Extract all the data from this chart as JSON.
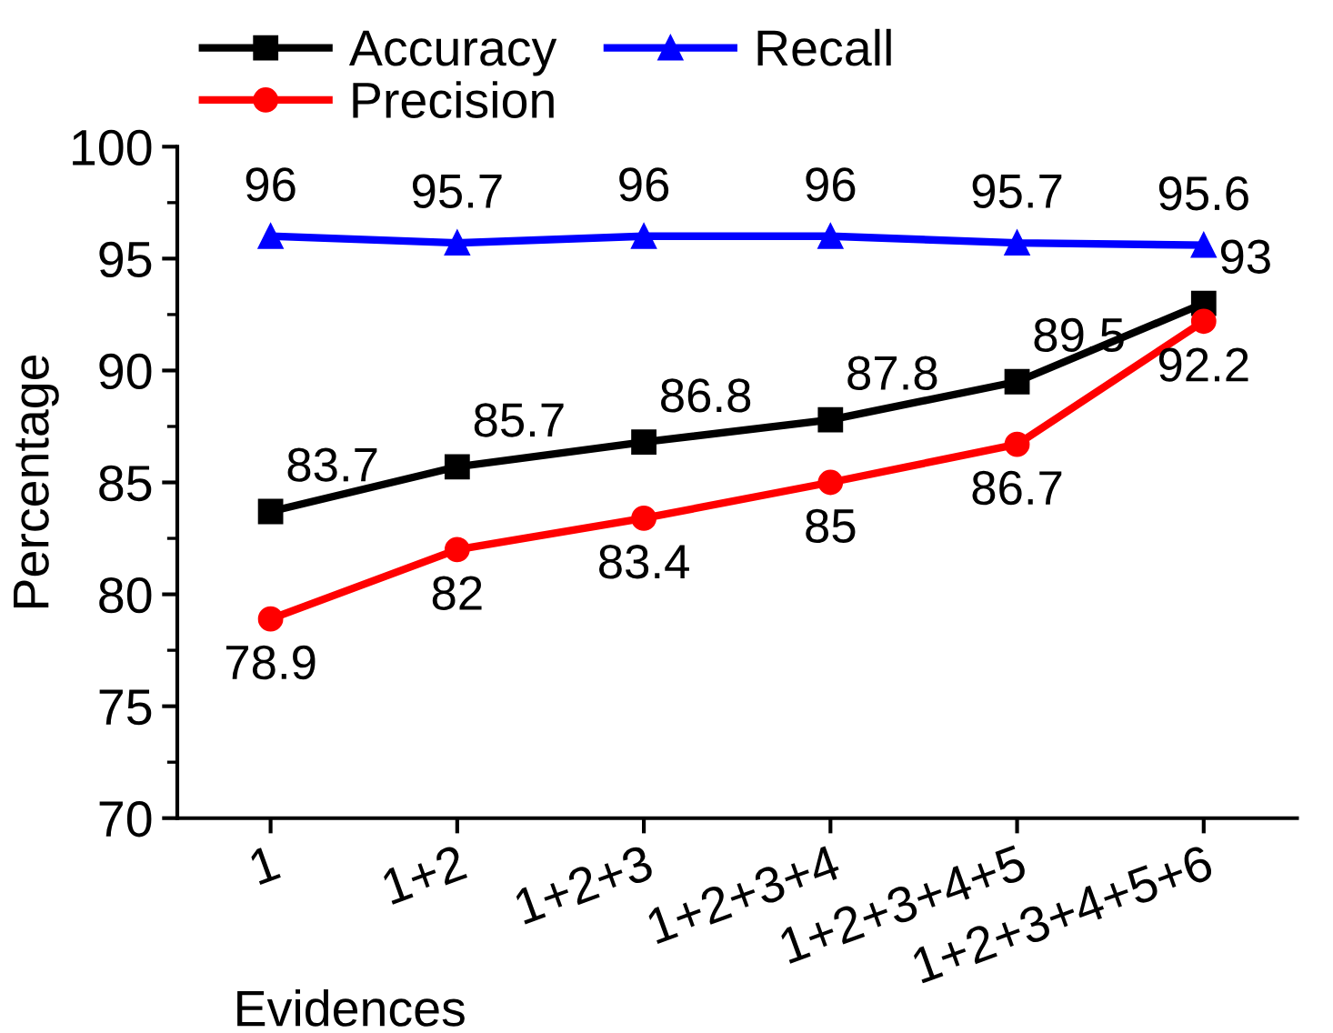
{
  "chart_data": {
    "type": "line",
    "xlabel": "Evidences",
    "ylabel": "Percentage",
    "categories": [
      "1",
      "1+2",
      "1+2+3",
      "1+2+3+4",
      "1+2+3+4+5",
      "1+2+3+4+5+6"
    ],
    "series": [
      {
        "name": "Accuracy",
        "color": "#000000",
        "marker": "square",
        "values": [
          83.7,
          85.7,
          86.8,
          87.8,
          89.5,
          93
        ]
      },
      {
        "name": "Precision",
        "color": "#ff0000",
        "marker": "circle",
        "values": [
          78.9,
          82,
          83.4,
          85,
          86.7,
          92.2
        ]
      },
      {
        "name": "Recall",
        "color": "#0000ff",
        "marker": "triangle",
        "values": [
          96,
          95.7,
          96,
          96,
          95.7,
          95.6
        ]
      }
    ],
    "ylim": [
      70,
      100
    ],
    "yticks": [
      70,
      75,
      80,
      85,
      90,
      95,
      100
    ],
    "grid": false,
    "legend": "top",
    "data_labels": true,
    "line_style": "solid"
  }
}
